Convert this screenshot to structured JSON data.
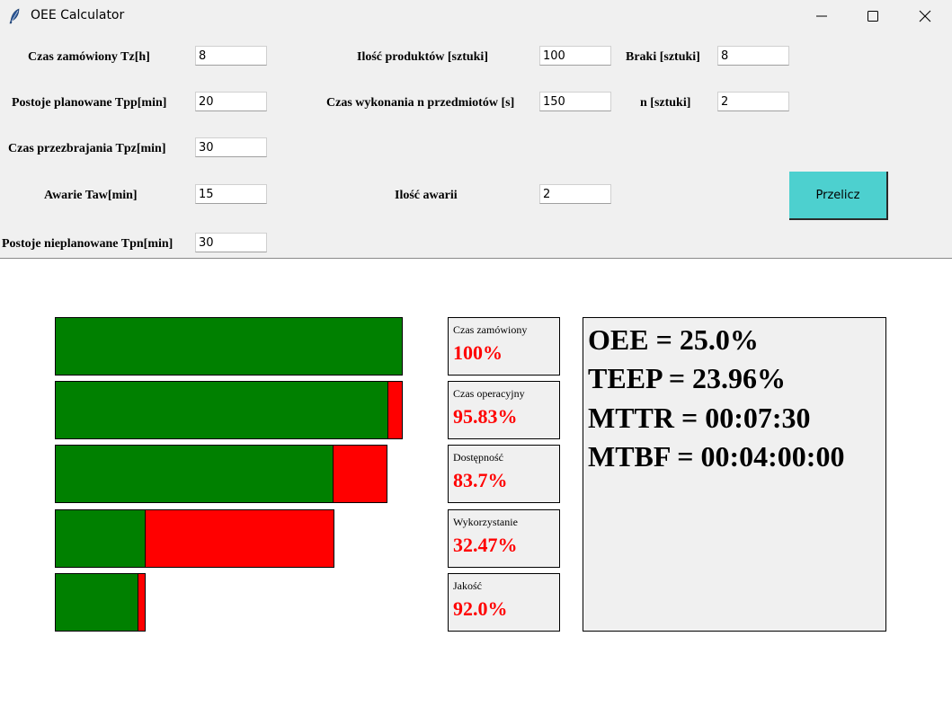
{
  "window": {
    "title": "OEE Calculator"
  },
  "form": {
    "tz": {
      "label": "Czas zamówiony Tz[h]",
      "value": "8"
    },
    "tpp": {
      "label": "Postoje planowane Tpp[min]",
      "value": "20"
    },
    "tpz": {
      "label": "Czas przezbrajania Tpz[min]",
      "value": "30"
    },
    "taw": {
      "label": "Awarie Taw[min]",
      "value": "15"
    },
    "tpn": {
      "label": "Postoje nieplanowane Tpn[min]",
      "value": "30"
    },
    "products": {
      "label": "Ilość produktów [sztuki]",
      "value": "100"
    },
    "exec_time": {
      "label": "Czas wykonania n przedmiotów [s]",
      "value": "150"
    },
    "failures": {
      "label": "Ilość awarii",
      "value": "2"
    },
    "defects": {
      "label": "Braki [sztuki]",
      "value": "8"
    },
    "n": {
      "label": "n [sztuki]",
      "value": "2"
    },
    "calc_button": "Przelicz"
  },
  "colors": {
    "good": "#008000",
    "loss": "#ff0000",
    "button": "#4dd0cf"
  },
  "waterfall": [
    {
      "good": 1.0,
      "loss": 0.0
    },
    {
      "good": 0.9583,
      "loss": 0.0417
    },
    {
      "good": 0.8021,
      "loss": 0.1562
    },
    {
      "good": 0.2604,
      "loss": 0.5417
    },
    {
      "good": 0.2396,
      "loss": 0.0208
    }
  ],
  "cards": [
    {
      "title": "Czas zamówiony",
      "value": "100%"
    },
    {
      "title": "Czas operacyjny",
      "value": "95.83%"
    },
    {
      "title": "Dostępność",
      "value": "83.7%"
    },
    {
      "title": "Wykorzystanie",
      "value": "32.47%"
    },
    {
      "title": "Jakość",
      "value": "92.0%"
    }
  ],
  "results": {
    "oee": "OEE = 25.0%",
    "teep": "TEEP = 23.96%",
    "mttr": "MTTR = 00:07:30",
    "mtbf": "MTBF = 00:04:00:00"
  }
}
